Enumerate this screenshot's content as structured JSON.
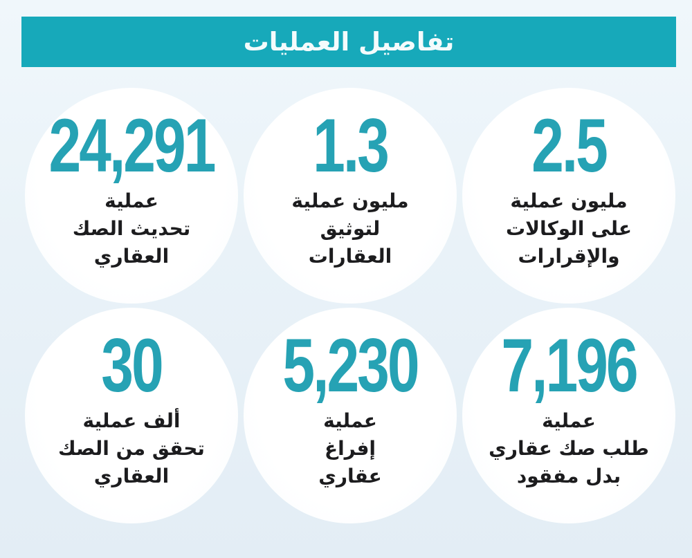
{
  "header": {
    "title": "تفاصيل العمليات"
  },
  "colors": {
    "header_teal": "#17a9ba",
    "number_teal": "#26a2b4",
    "background_light_blue": "#e9f2f8",
    "circle_white": "#ffffff",
    "label_black": "#1c1c1e"
  },
  "stats": [
    {
      "value": "24,291",
      "lines": [
        "عملية",
        "تحديث الصك",
        "العقاري"
      ]
    },
    {
      "value": "1.3",
      "lines": [
        "مليون عملية",
        "لتوثيق",
        "العقارات"
      ]
    },
    {
      "value": "2.5",
      "lines": [
        "مليون عملية",
        "على الوكالات",
        "والإقرارات"
      ]
    },
    {
      "value": "30",
      "lines": [
        "ألف عملية",
        "تحقق من الصك",
        "العقاري"
      ]
    },
    {
      "value": "5,230",
      "lines": [
        "عملية",
        "إفراغ",
        "عقاري"
      ]
    },
    {
      "value": "7,196",
      "lines": [
        "عملية",
        "طلب صك عقاري",
        "بدل مفقود"
      ]
    }
  ],
  "chart_data": {
    "type": "table",
    "title": "تفاصيل العمليات",
    "legend_position": "none",
    "rows": [
      {
        "value": 24291,
        "display": "24,291",
        "label": "عملية تحديث الصك العقاري"
      },
      {
        "value": 1300000,
        "display": "1.3 مليون",
        "label": "عملية لتوثيق العقارات"
      },
      {
        "value": 2500000,
        "display": "2.5 مليون",
        "label": "عملية على الوكالات والإقرارات"
      },
      {
        "value": 30000,
        "display": "30 ألف",
        "label": "عملية تحقق من الصك العقاري"
      },
      {
        "value": 5230,
        "display": "5,230",
        "label": "عملية إفراغ عقاري"
      },
      {
        "value": 7196,
        "display": "7,196",
        "label": "عملية طلب صك عقاري بدل مفقود"
      }
    ]
  }
}
